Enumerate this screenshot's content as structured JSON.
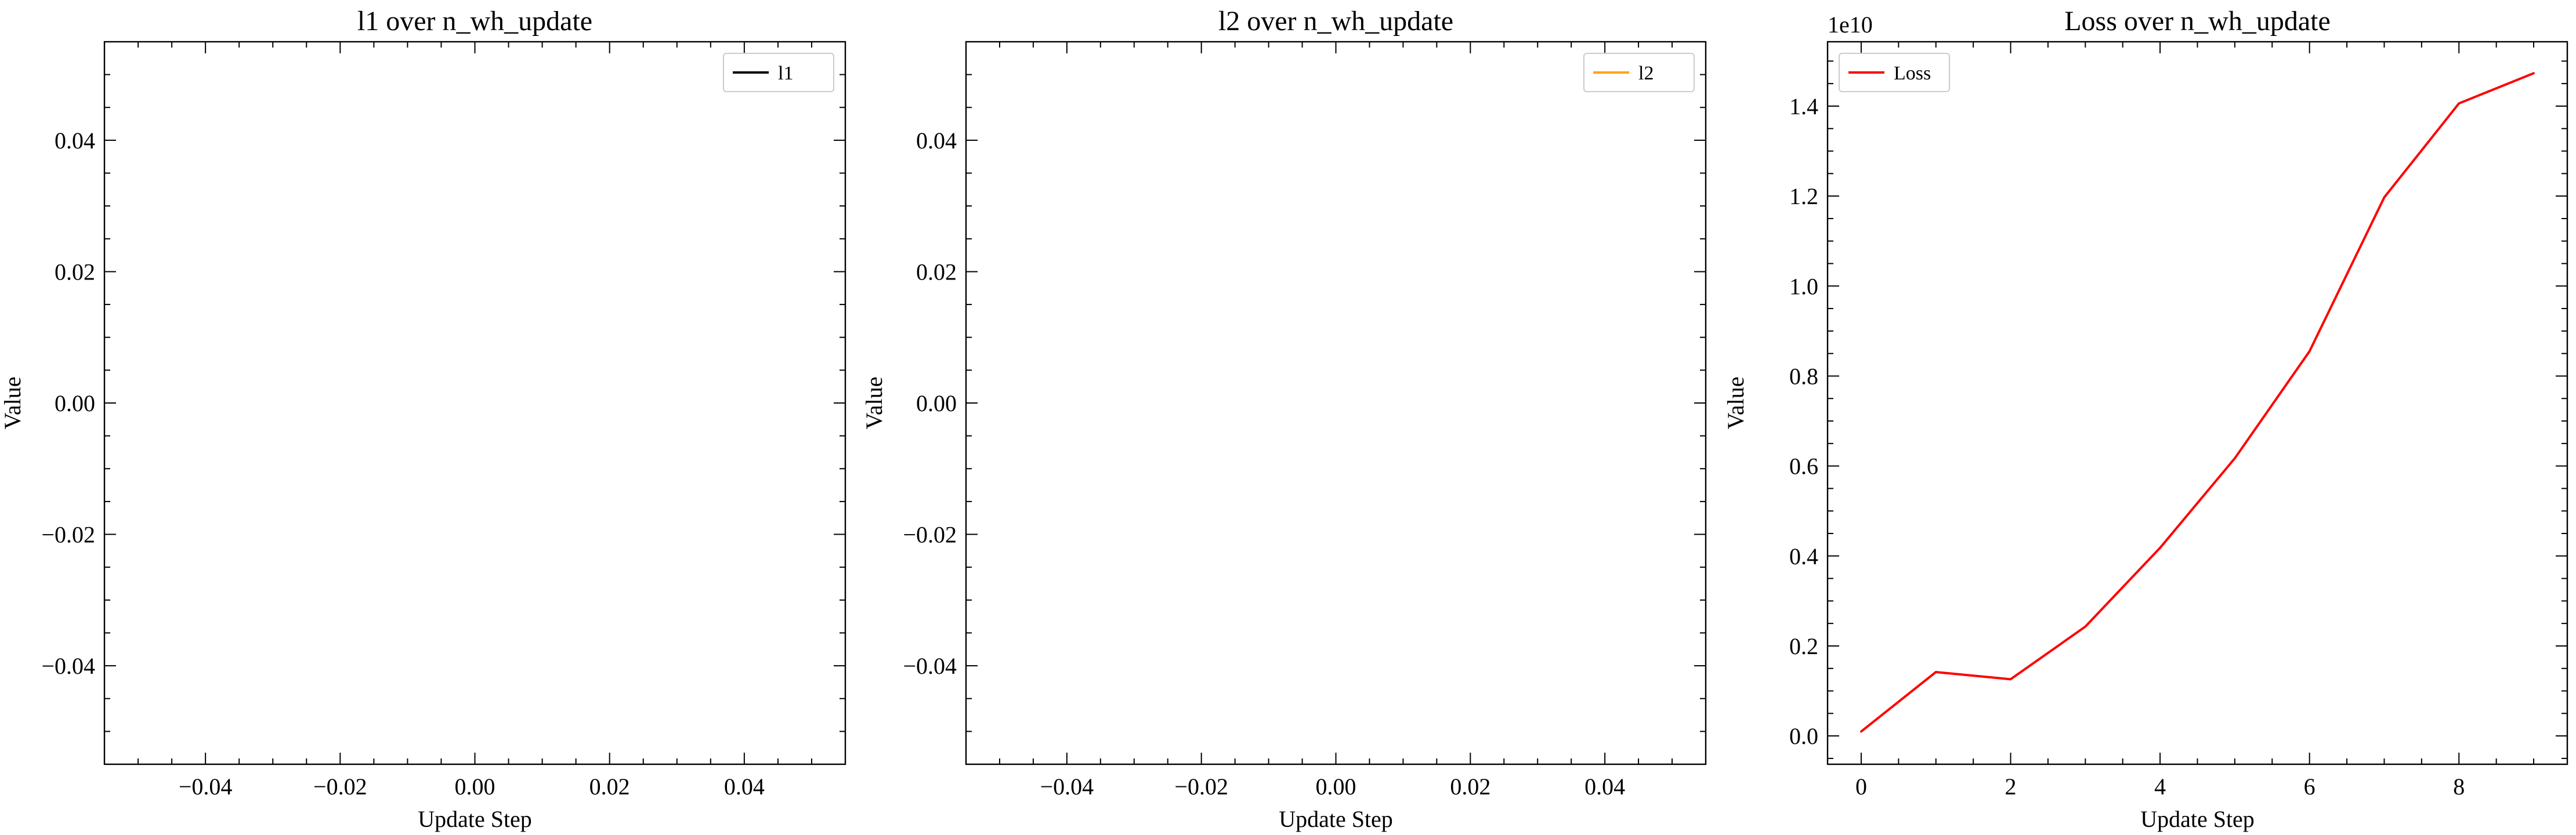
{
  "chart_data": [
    {
      "type": "line",
      "title": "l1 over n_wh_update",
      "xlabel": "Update Step",
      "ylabel": "Value",
      "xlim": [
        -0.055,
        0.055
      ],
      "ylim": [
        -0.055,
        0.055
      ],
      "xticks": [
        -0.04,
        -0.02,
        0.0,
        0.02,
        0.04
      ],
      "xtick_labels": [
        "−0.04",
        "−0.02",
        "0.00",
        "0.02",
        "0.04"
      ],
      "yticks": [
        -0.04,
        -0.02,
        0.0,
        0.02,
        0.04
      ],
      "ytick_labels": [
        "−0.04",
        "−0.02",
        "0.00",
        "0.02",
        "0.04"
      ],
      "legend_position": "top-right",
      "series": [
        {
          "name": "l1",
          "color": "#000000",
          "x": [],
          "y": []
        }
      ]
    },
    {
      "type": "line",
      "title": "l2 over n_wh_update",
      "xlabel": "Update Step",
      "ylabel": "Value",
      "xlim": [
        -0.055,
        0.055
      ],
      "ylim": [
        -0.055,
        0.055
      ],
      "xticks": [
        -0.04,
        -0.02,
        0.0,
        0.02,
        0.04
      ],
      "xtick_labels": [
        "−0.04",
        "−0.02",
        "0.00",
        "0.02",
        "0.04"
      ],
      "yticks": [
        -0.04,
        -0.02,
        0.0,
        0.02,
        0.04
      ],
      "ytick_labels": [
        "−0.04",
        "−0.02",
        "0.00",
        "0.02",
        "0.04"
      ],
      "legend_position": "top-right",
      "series": [
        {
          "name": "l2",
          "color": "#ffa500",
          "x": [],
          "y": []
        }
      ]
    },
    {
      "type": "line",
      "title": "Loss over n_wh_update",
      "xlabel": "Update Step",
      "ylabel": "Value",
      "offset_label": "1e10",
      "xlim": [
        -0.45,
        9.45
      ],
      "ylim": [
        -0.063,
        1.543
      ],
      "xticks": [
        0,
        2,
        4,
        6,
        8
      ],
      "xtick_labels": [
        "0",
        "2",
        "4",
        "6",
        "8"
      ],
      "yticks": [
        0.0,
        0.2,
        0.4,
        0.6,
        0.8,
        1.0,
        1.2,
        1.4
      ],
      "ytick_labels": [
        "0.0",
        "0.2",
        "0.4",
        "0.6",
        "0.8",
        "1.0",
        "1.2",
        "1.4"
      ],
      "legend_position": "top-left",
      "series": [
        {
          "name": "Loss",
          "color": "#ff0000",
          "x": [
            0,
            1,
            2,
            3,
            4,
            5,
            6,
            7,
            8,
            9
          ],
          "y": [
            0.01,
            0.142,
            0.126,
            0.243,
            0.418,
            0.617,
            0.855,
            1.197,
            1.406,
            1.473
          ]
        }
      ]
    }
  ]
}
